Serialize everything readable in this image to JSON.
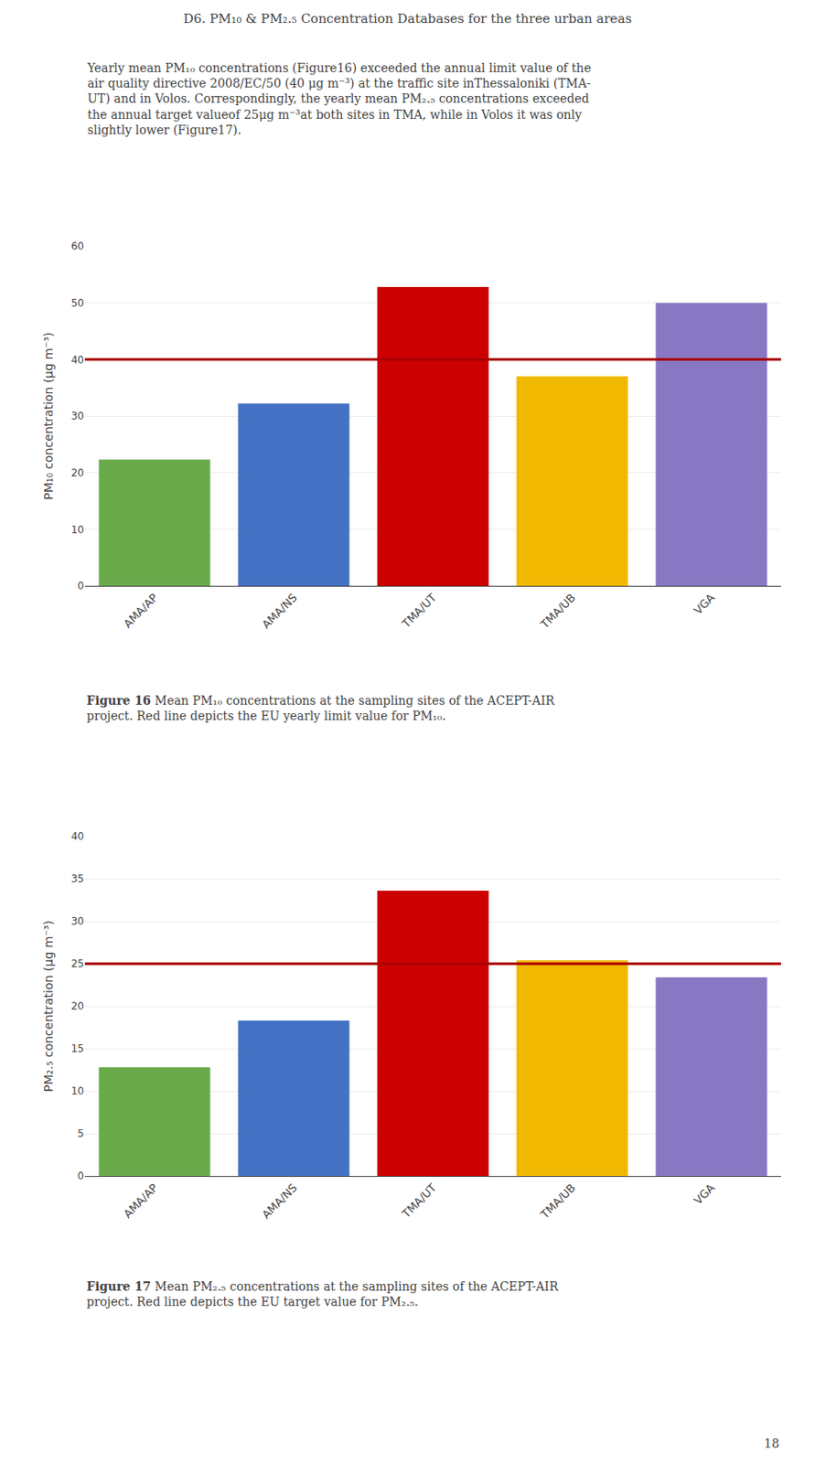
{
  "title": "D6. PM₁₀ & PM₂.₅ Concentration Databases for the three urban areas",
  "annotations": [
    {
      "lines": [
        "Yearly mean PM₁₀ concentrations (Figure16) exceeded the annual limit value of the",
        "air quality directive 2008/EC/50 (40 μg m⁻³) at the traffic site inThessaloniki (TMA-",
        "UT) and in Volos. Correspondingly, the yearly mean PM₂.₅ concentrations exceeded",
        "the annual target valueof 25μg m⁻³at both sites in TMA, while in Volos it was only",
        "slightly lower (Figure17)."
      ]
    },
    {
      "lines": [
        "18"
      ]
    }
  ],
  "chart_data": [
    {
      "type": "bar",
      "categories": [
        "AMA/AP",
        "AMA/NS",
        "TMA/UT",
        "TMA/UB",
        "VGA"
      ],
      "values": [
        22.3,
        32.2,
        52.8,
        37.0,
        50.0
      ],
      "colors": [
        "#6aaa4b",
        "#4472c4",
        "#cc0000",
        "#f0b800",
        "#8878c3"
      ],
      "ref_line": {
        "value": 40,
        "color": "#aa0000"
      },
      "ylabel": "PM₁₀ concentration (μg m⁻³)",
      "ylim": [
        0,
        60
      ],
      "yticks": [
        0,
        10,
        20,
        30,
        40,
        50,
        60
      ],
      "grid": true,
      "annotations": [
        {
          "bold": "Figure 16",
          "lines": [
            "Mean PM₁₀ concentrations at the sampling sites of the ACEPT-AIR",
            "project. Red line depicts the EU yearly limit value for PM₁₀."
          ]
        }
      ]
    },
    {
      "type": "bar",
      "categories": [
        "AMA/AP",
        "AMA/NS",
        "TMA/UT",
        "TMA/UB",
        "VGA"
      ],
      "values": [
        12.8,
        18.3,
        33.6,
        25.4,
        23.4
      ],
      "colors": [
        "#6aaa4b",
        "#4472c4",
        "#cc0000",
        "#f0b800",
        "#8878c3"
      ],
      "ref_line": {
        "value": 25,
        "color": "#aa0000"
      },
      "ylabel": "PM₂.₅ concentration (μg m⁻³)",
      "ylim": [
        0,
        40
      ],
      "yticks": [
        0,
        5,
        10,
        15,
        20,
        25,
        30,
        35,
        40
      ],
      "grid": true,
      "annotations": [
        {
          "bold": "Figure 17",
          "lines": [
            "Mean PM₂.₅ concentrations at the sampling sites of the ACEPT-AIR",
            "project. Red line depicts the EU target value for PM₂.₅."
          ]
        }
      ]
    }
  ]
}
